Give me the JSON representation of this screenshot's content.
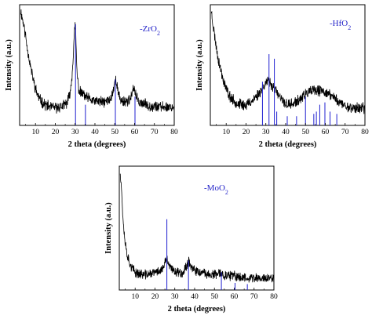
{
  "chart_data": [
    {
      "type": "line",
      "xlabel": "2 theta (degrees)",
      "ylabel": "Intensity (a.u.)",
      "xlim": [
        2,
        80
      ],
      "xticks": [
        10,
        20,
        30,
        40,
        50,
        60,
        70,
        80
      ],
      "grid": false,
      "legend": {
        "placement": "top-right",
        "marker": "-",
        "label": "ZrO",
        "subscript": "2"
      },
      "series": [
        {
          "kind": "pattern",
          "color": "#000000",
          "noise_level": 4.0,
          "x": [
            2.5,
            3,
            4,
            5,
            6,
            7,
            8,
            9,
            10,
            11,
            12,
            14,
            16,
            18,
            20,
            22,
            24,
            26,
            27,
            28,
            28.5,
            29,
            29.5,
            30,
            30.3,
            30.6,
            31,
            31.5,
            32,
            33,
            34,
            35,
            36,
            38,
            40,
            42,
            44,
            46,
            48,
            49,
            50,
            50.5,
            51,
            51.5,
            52,
            53,
            54,
            56,
            58,
            59,
            59.5,
            60,
            60.5,
            61,
            62,
            64,
            66,
            68,
            70,
            72,
            74,
            76,
            78,
            80
          ],
          "y": [
            100,
            96,
            88,
            78,
            66,
            56,
            47,
            39,
            32,
            27,
            23,
            19,
            17,
            16,
            15,
            16,
            17,
            20,
            25,
            35,
            45,
            60,
            75,
            88,
            80,
            62,
            45,
            36,
            30,
            28,
            28,
            25,
            24,
            22,
            21,
            21,
            20,
            21,
            23,
            29,
            37,
            41,
            37,
            30,
            26,
            22,
            21,
            21,
            23,
            28,
            33,
            32,
            27,
            24,
            21,
            19,
            18,
            17,
            17,
            16,
            16,
            16,
            16,
            16
          ]
        },
        {
          "kind": "reference",
          "color": "#2020d0",
          "x": [
            30.2,
            35.2,
            50.3,
            60.2
          ],
          "y": [
            88,
            18,
            40,
            25
          ]
        }
      ]
    },
    {
      "type": "line",
      "xlabel": "2 theta (degrees)",
      "ylabel": "Intensity (a.u.)",
      "xlim": [
        2,
        80
      ],
      "xticks": [
        10,
        20,
        30,
        40,
        50,
        60,
        70,
        80
      ],
      "grid": false,
      "legend": {
        "placement": "top-right",
        "marker": "-",
        "label": "HfO",
        "subscript": "2"
      },
      "series": [
        {
          "kind": "pattern",
          "color": "#000000",
          "noise_level": 4.0,
          "x": [
            2.5,
            3,
            4,
            5,
            6,
            7,
            8,
            9,
            10,
            11,
            12,
            14,
            16,
            18,
            20,
            22,
            24,
            26,
            28,
            29,
            30,
            31,
            32,
            33,
            34,
            35,
            36,
            38,
            40,
            42,
            44,
            46,
            48,
            50,
            52,
            54,
            56,
            58,
            60,
            62,
            64,
            66,
            68,
            70,
            72,
            74,
            76,
            78,
            80
          ],
          "y": [
            100,
            92,
            80,
            68,
            58,
            50,
            43,
            37,
            32,
            28,
            25,
            21,
            19,
            18,
            18,
            20,
            23,
            27,
            32,
            35,
            37,
            38,
            37,
            35,
            33,
            30,
            27,
            22,
            19,
            18,
            19,
            21,
            24,
            27,
            29,
            30,
            30,
            30,
            29,
            27,
            25,
            22,
            19,
            17,
            16,
            15,
            15,
            15,
            15
          ]
        },
        {
          "kind": "reference",
          "color": "#2020d0",
          "x": [
            28.3,
            31.6,
            34.3,
            35.5,
            40.8,
            45.5,
            50.0,
            54.2,
            55.5,
            57.2,
            59.8,
            62.4,
            65.8
          ],
          "y": [
            38,
            62,
            58,
            12,
            8,
            8,
            25,
            10,
            12,
            18,
            20,
            12,
            10
          ]
        }
      ]
    },
    {
      "type": "line",
      "xlabel": "2 theta (degrees)",
      "ylabel": "Intensity (a.u.)",
      "xlim": [
        2,
        80
      ],
      "xticks": [
        10,
        20,
        30,
        40,
        50,
        60,
        70,
        80
      ],
      "grid": false,
      "legend": {
        "placement": "top-left",
        "marker": "-",
        "label": "MoO",
        "subscript": "2"
      },
      "series": [
        {
          "kind": "pattern",
          "color": "#000000",
          "noise_level": 3.5,
          "x": [
            2.5,
            3,
            3.5,
            4,
            4.5,
            5,
            6,
            7,
            8,
            9,
            10,
            12,
            14,
            16,
            18,
            20,
            22,
            24,
            25,
            25.5,
            26,
            26.5,
            27,
            28,
            30,
            32,
            34,
            35,
            36,
            37,
            38,
            39,
            40,
            42,
            44,
            46,
            48,
            50,
            52,
            53,
            54,
            56,
            58,
            60,
            62,
            64,
            66,
            68,
            70,
            72,
            74,
            76,
            78,
            80
          ],
          "y": [
            100,
            90,
            72,
            58,
            48,
            40,
            30,
            24,
            20,
            17,
            15,
            14,
            13,
            13,
            14,
            15,
            16,
            18,
            22,
            26,
            27,
            24,
            21,
            18,
            16,
            15,
            15,
            17,
            21,
            25,
            21,
            18,
            16,
            15,
            14,
            14,
            13,
            13,
            13,
            15,
            13,
            12,
            12,
            12,
            11,
            11,
            11,
            10,
            10,
            10,
            10,
            10,
            10,
            10
          ]
        },
        {
          "kind": "reference",
          "color": "#2020d0",
          "x": [
            26.0,
            36.9,
            53.5,
            60.4,
            66.6
          ],
          "y": [
            60,
            25,
            15,
            6,
            5
          ]
        }
      ]
    }
  ]
}
